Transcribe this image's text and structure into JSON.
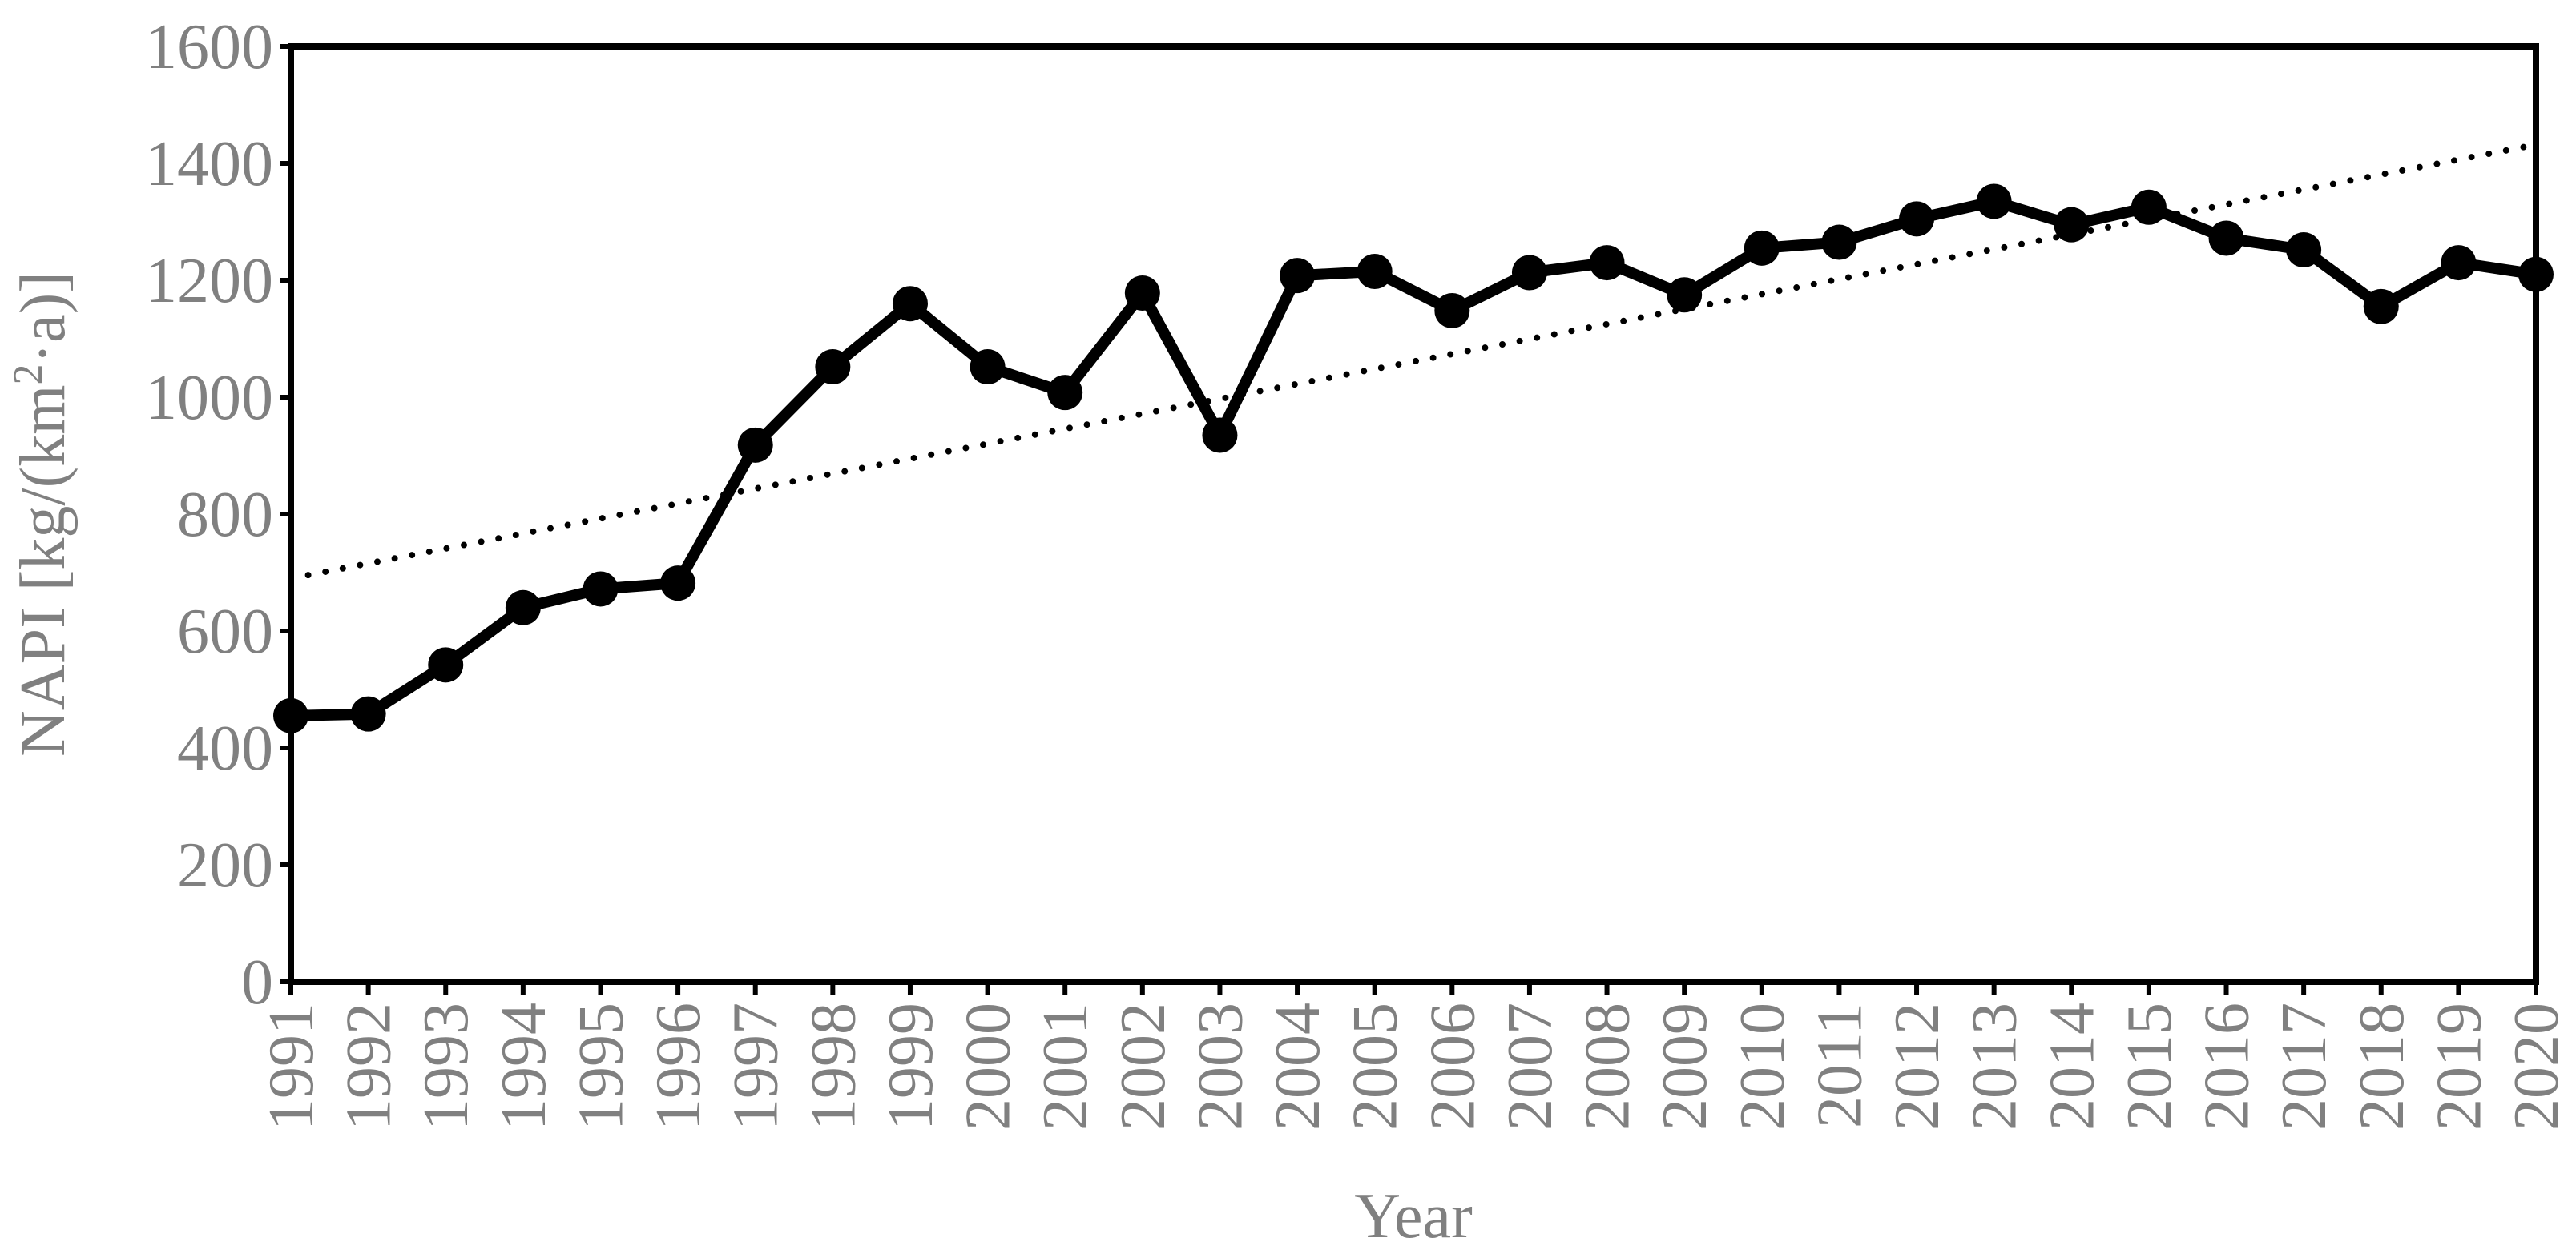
{
  "chart_data": {
    "type": "line",
    "title": "",
    "xlabel": "Year",
    "ylabel": "NAPI [kg/(km²·a)]",
    "ylabel_parts": {
      "base": "NAPI  [kg/(km",
      "sup": "2",
      "tail": "·a)]"
    },
    "ylim": [
      0,
      1600
    ],
    "yticks": [
      0,
      200,
      400,
      600,
      800,
      1000,
      1200,
      1400,
      1600
    ],
    "categories": [
      "1991",
      "1992",
      "1993",
      "1994",
      "1995",
      "1996",
      "1997",
      "1998",
      "1999",
      "2000",
      "2001",
      "2002",
      "2003",
      "2004",
      "2005",
      "2006",
      "2007",
      "2008",
      "2009",
      "2010",
      "2011",
      "2012",
      "2013",
      "2014",
      "2015",
      "2016",
      "2017",
      "2018",
      "2019",
      "2020"
    ],
    "series": [
      {
        "values": [
          455,
          458,
          542,
          640,
          672,
          682,
          918,
          1052,
          1160,
          1052,
          1008,
          1178,
          935,
          1208,
          1215,
          1148,
          1213,
          1230,
          1175,
          1255,
          1265,
          1305,
          1335,
          1295,
          1325,
          1272,
          1252,
          1155,
          1230,
          1210
        ],
        "style": "solid",
        "color": "#000000",
        "markers": true
      }
    ],
    "trendline": {
      "style": "dotted",
      "color": "#000000",
      "start": 690,
      "end": 1432
    },
    "grid": false,
    "legend": "none"
  }
}
